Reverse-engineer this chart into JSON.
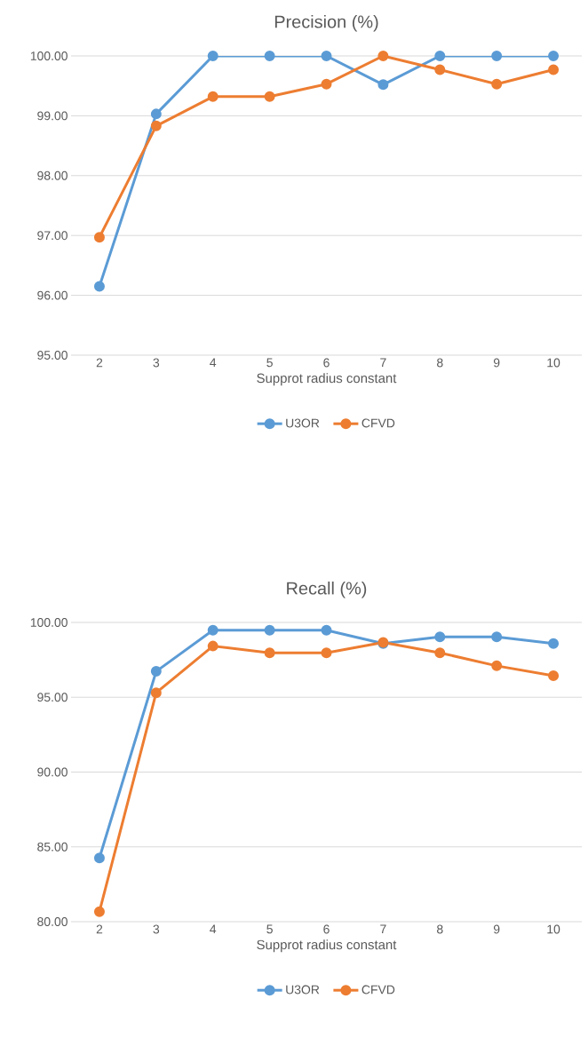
{
  "chart_data": [
    {
      "type": "line",
      "title": "Precision (%)",
      "xlabel": "Supprot radius constant",
      "categories": [
        "2",
        "3",
        "4",
        "5",
        "6",
        "7",
        "8",
        "9",
        "10"
      ],
      "series": [
        {
          "name": "U3OR",
          "color": "#5b9bd5",
          "values": [
            96.15,
            99.03,
            100,
            100,
            100,
            99.52,
            100,
            100,
            100
          ]
        },
        {
          "name": "CFVD",
          "color": "#ed7d31",
          "values": [
            96.97,
            98.83,
            99.32,
            99.32,
            99.53,
            100,
            99.77,
            99.53,
            99.77
          ]
        }
      ],
      "ylim": [
        95,
        100
      ],
      "yticks": [
        {
          "value": 95,
          "label": "95.00"
        },
        {
          "value": 96,
          "label": "96.00"
        },
        {
          "value": 97,
          "label": "97.00"
        },
        {
          "value": 98,
          "label": "98.00"
        },
        {
          "value": 99,
          "label": "99.00"
        },
        {
          "value": 100,
          "label": "100.00"
        }
      ],
      "grid": "y",
      "legend": "bottom",
      "marker": "circle",
      "line_style": "solid"
    },
    {
      "type": "line",
      "title": "Recall (%)",
      "xlabel": "Supprot radius constant",
      "categories": [
        "2",
        "3",
        "4",
        "5",
        "6",
        "7",
        "8",
        "9",
        "10"
      ],
      "series": [
        {
          "name": "U3OR",
          "color": "#5b9bd5",
          "values": [
            84.26,
            96.73,
            99.48,
            99.48,
            99.48,
            98.59,
            99.03,
            99.03,
            98.59
          ]
        },
        {
          "name": "CFVD",
          "color": "#ed7d31",
          "values": [
            80.67,
            95.3,
            98.42,
            97.97,
            97.97,
            98.66,
            97.97,
            97.1,
            96.44
          ]
        }
      ],
      "ylim": [
        80,
        100
      ],
      "yticks": [
        {
          "value": 80,
          "label": "80.00"
        },
        {
          "value": 85,
          "label": "85.00"
        },
        {
          "value": 90,
          "label": "90.00"
        },
        {
          "value": 95,
          "label": "95.00"
        },
        {
          "value": 100,
          "label": "100.00"
        }
      ],
      "grid": "y",
      "legend": "bottom",
      "marker": "circle",
      "line_style": "solid"
    }
  ]
}
